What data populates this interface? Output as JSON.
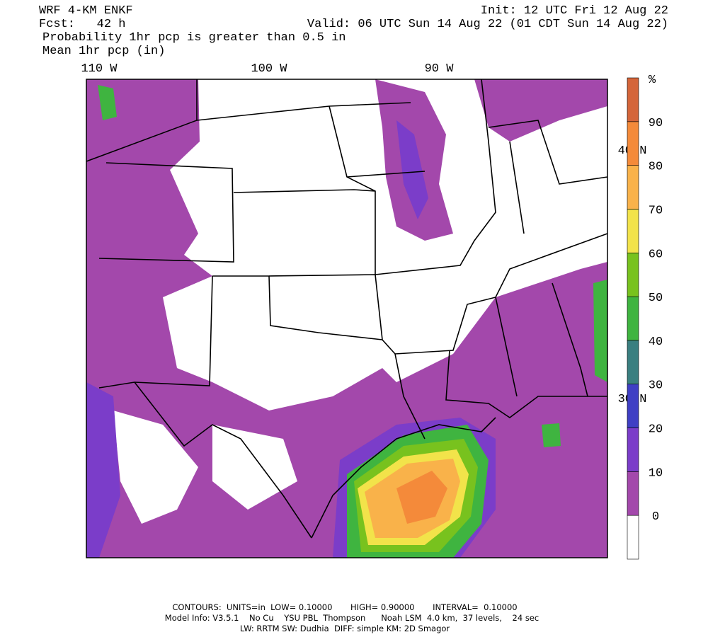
{
  "header": {
    "title": "WRF 4-KM ENKF",
    "forecast": "Fcst:   42 h",
    "init": "Init: 12 UTC Fri 12 Aug 22",
    "valid": "Valid: 06 UTC Sun 14 Aug 22 (01 CDT Sun 14 Aug 22)",
    "field1": "Probability 1hr pcp is greater than 0.5 in",
    "field2": "Mean 1hr pcp (in)"
  },
  "map": {
    "lon_labels": [
      "110 W",
      "100 W",
      "90 W"
    ],
    "lat_labels": [
      "40 N",
      "30 N"
    ]
  },
  "colorbar": {
    "unit": "%",
    "ticks": [
      0,
      10,
      20,
      30,
      40,
      50,
      60,
      70,
      80,
      90
    ],
    "colors": [
      "#ffffff",
      "#a348ab",
      "#7b3dc9",
      "#3f3fc4",
      "#3a7f80",
      "#3fb440",
      "#78c21e",
      "#f2e34a",
      "#f9b24a",
      "#f48a3a",
      "#d4653a"
    ]
  },
  "footer": {
    "line1": "CONTOURS:  UNITS=in  LOW= 0.10000       HIGH= 0.90000       INTERVAL=  0.10000",
    "line2": "Model Info: V3.5.1    No Cu    YSU PBL  Thompson      Noah LSM  4.0 km,  37 levels,    24 sec",
    "line3": "LW: RRTM SW: Dudhia  DIFF: simple KM: 2D Smagor"
  }
}
